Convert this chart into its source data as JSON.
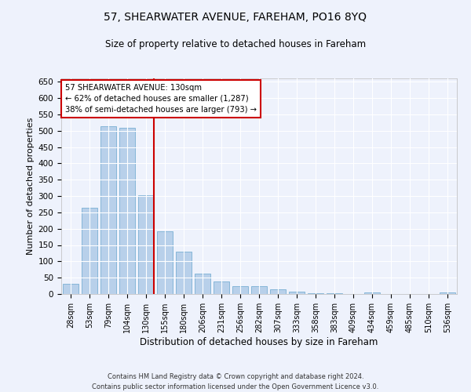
{
  "title1": "57, SHEARWATER AVENUE, FAREHAM, PO16 8YQ",
  "title2": "Size of property relative to detached houses in Fareham",
  "xlabel": "Distribution of detached houses by size in Fareham",
  "ylabel": "Number of detached properties",
  "footer1": "Contains HM Land Registry data © Crown copyright and database right 2024.",
  "footer2": "Contains public sector information licensed under the Open Government Licence v3.0.",
  "annotation_line1": "57 SHEARWATER AVENUE: 130sqm",
  "annotation_line2": "← 62% of detached houses are smaller (1,287)",
  "annotation_line3": "38% of semi-detached houses are larger (793) →",
  "bar_labels": [
    "28sqm",
    "53sqm",
    "79sqm",
    "104sqm",
    "130sqm",
    "155sqm",
    "180sqm",
    "206sqm",
    "231sqm",
    "256sqm",
    "282sqm",
    "307sqm",
    "333sqm",
    "358sqm",
    "383sqm",
    "409sqm",
    "434sqm",
    "459sqm",
    "485sqm",
    "510sqm",
    "536sqm"
  ],
  "bar_values": [
    32,
    263,
    513,
    510,
    302,
    193,
    130,
    63,
    39,
    24,
    24,
    14,
    7,
    3,
    3,
    1,
    4,
    0,
    0,
    1,
    6
  ],
  "bar_color": "#b8d0ea",
  "bar_edge_color": "#7aafd4",
  "vline_color": "#cc0000",
  "annotation_box_color": "#cc0000",
  "annotation_fill": "#ffffff",
  "background_color": "#eef2fc",
  "grid_color": "#ffffff",
  "ylim": [
    0,
    660
  ],
  "yticks": [
    0,
    50,
    100,
    150,
    200,
    250,
    300,
    350,
    400,
    450,
    500,
    550,
    600,
    650
  ]
}
